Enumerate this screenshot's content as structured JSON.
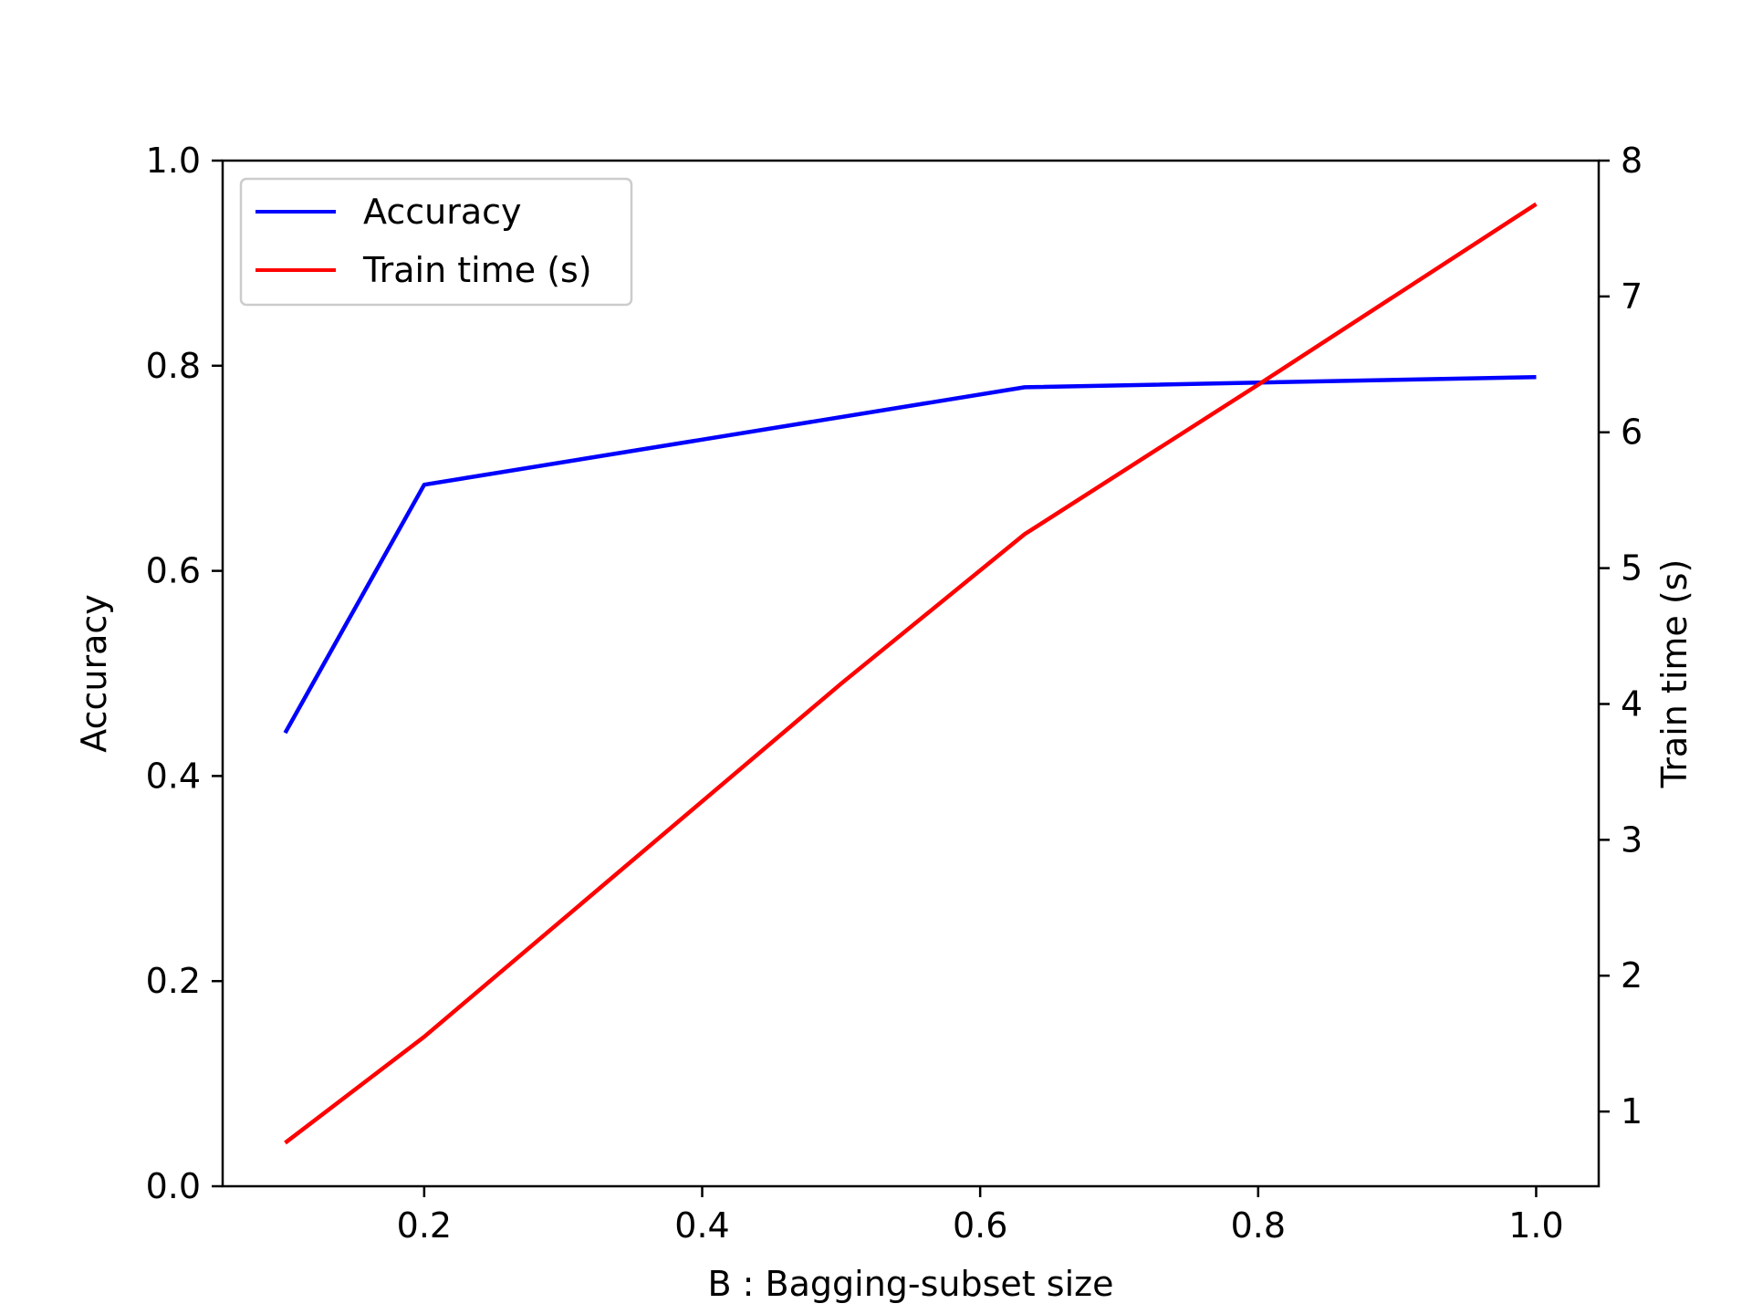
{
  "chart_data": {
    "type": "line",
    "xlabel": "B : Bagging-subset size",
    "ylabel": "Accuracy",
    "y2label": "Train time (s)",
    "xlim": [
      0.055,
      1.045
    ],
    "ylim": [
      0.0,
      1.0
    ],
    "y2lim": [
      0.45,
      8.0
    ],
    "xticks": [
      0.2,
      0.4,
      0.6,
      0.8,
      1.0
    ],
    "xtick_labels": [
      "0.2",
      "0.4",
      "0.6",
      "0.8",
      "1.0"
    ],
    "yticks": [
      0.0,
      0.2,
      0.4,
      0.6,
      0.8,
      1.0
    ],
    "ytick_labels": [
      "0.0",
      "0.2",
      "0.4",
      "0.6",
      "0.8",
      "1.0"
    ],
    "y2ticks": [
      1,
      2,
      3,
      4,
      5,
      6,
      7,
      8
    ],
    "y2tick_labels": [
      "1",
      "2",
      "3",
      "4",
      "5",
      "6",
      "7",
      "8"
    ],
    "legend_position": "top-left",
    "series": [
      {
        "name": "Accuracy",
        "axis": "left",
        "color": "#0000ff",
        "x": [
          0.1,
          0.2,
          0.632,
          1.0
        ],
        "values": [
          0.442,
          0.684,
          0.779,
          0.789
        ]
      },
      {
        "name": "Train time (s)",
        "axis": "right",
        "color": "#ff0000",
        "x": [
          0.1,
          0.2,
          0.5,
          0.632,
          0.8,
          1.0
        ],
        "values": [
          0.77,
          1.55,
          4.15,
          5.25,
          6.35,
          7.68
        ]
      }
    ]
  }
}
